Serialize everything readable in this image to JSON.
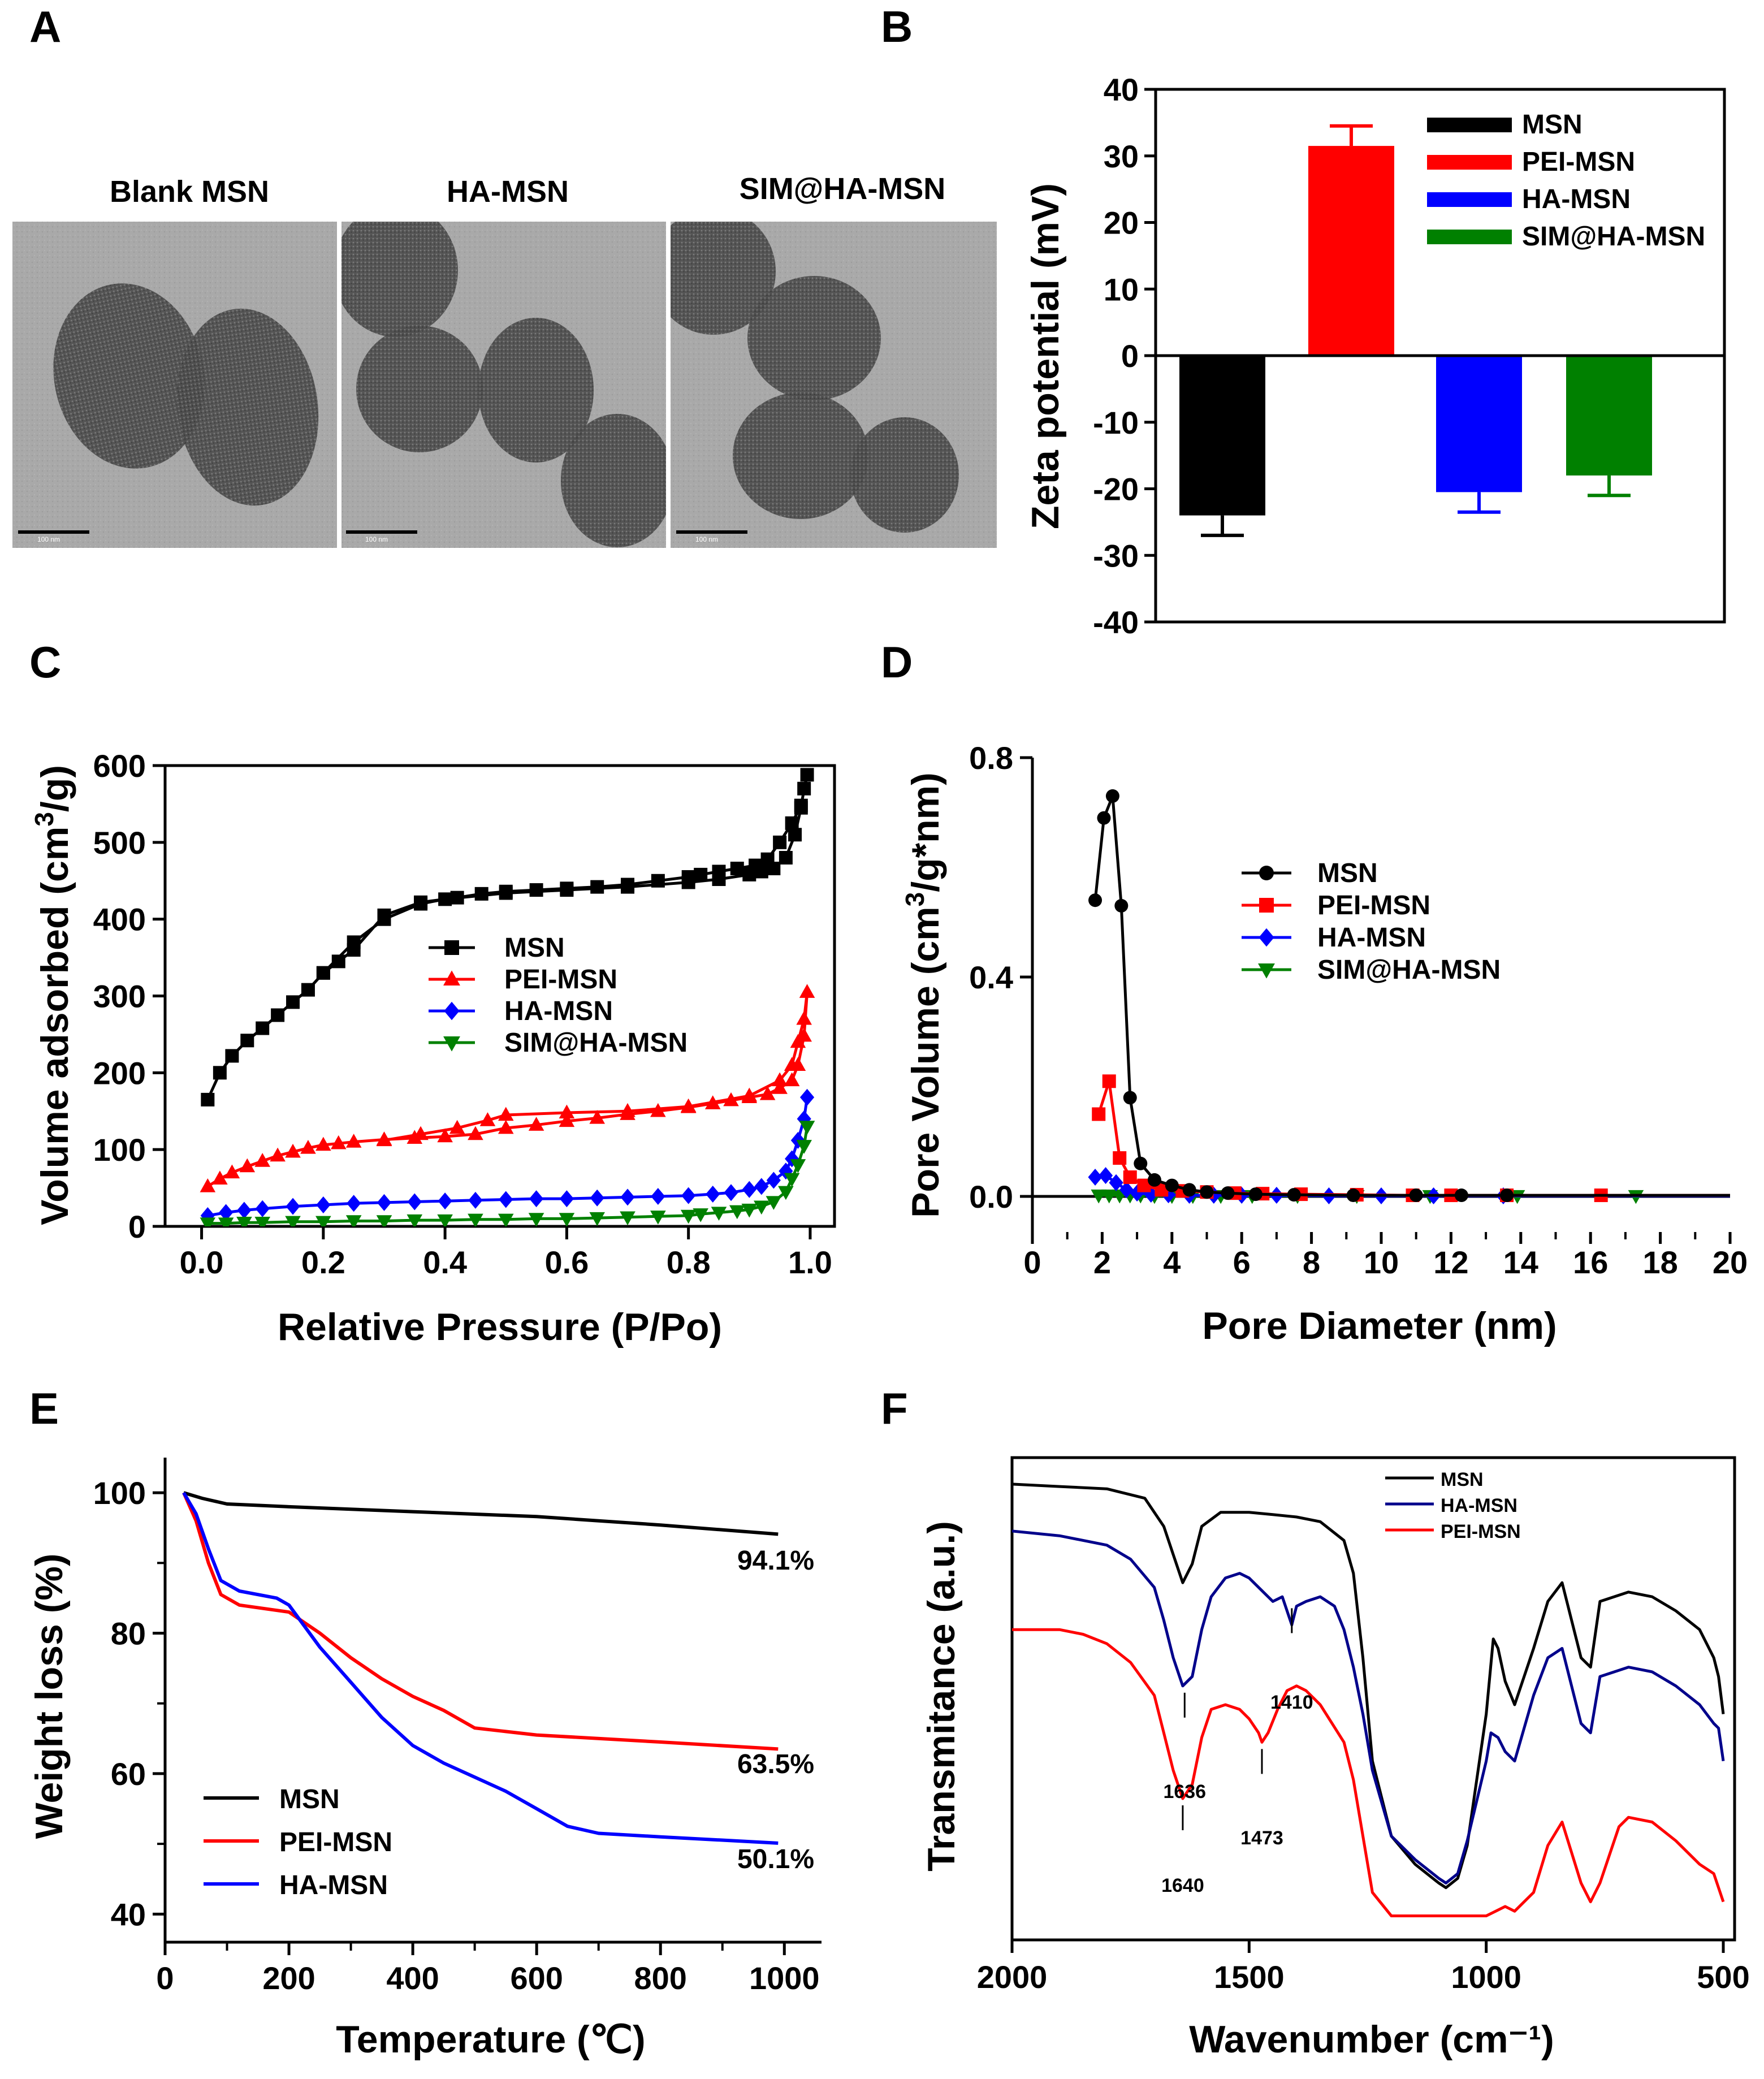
{
  "panels": {
    "A": "A",
    "B": "B",
    "C": "C",
    "D": "D",
    "E": "E",
    "F": "F"
  },
  "colors": {
    "msn": "#000000",
    "pei": "#ff0000",
    "ha": "#0000ff",
    "sim": "#008000",
    "ftir_blue": "#00008b",
    "tga_blue": "#0000ff"
  },
  "tem": {
    "captions": [
      "Blank MSN",
      "HA-MSN",
      "SIM@HA-MSN"
    ],
    "scale_label": "100 nm"
  },
  "chart_data": [
    {
      "id": "B",
      "type": "bar",
      "categories": [
        "MSN",
        "PEI-MSN",
        "HA-MSN",
        "SIM@HA-MSN"
      ],
      "values": [
        -24,
        31.5,
        -20.5,
        -18
      ],
      "errors": [
        3,
        3,
        3,
        3
      ],
      "colors": [
        "#000000",
        "#ff0000",
        "#0000ff",
        "#008000"
      ],
      "ylabel": "Zeta potential (mV)",
      "ylim": [
        -40,
        40
      ],
      "yticks": [
        "40",
        "30",
        "20",
        "10",
        "0",
        "-10",
        "-20",
        "-30",
        "-40"
      ],
      "legend": [
        "MSN",
        "PEI-MSN",
        "HA-MSN",
        "SIM@HA-MSN"
      ]
    },
    {
      "id": "C",
      "type": "scatter",
      "xlabel": "Relative Pressure (P/Po)",
      "ylabel": "Volume adsorbed (cm³/g)",
      "ylabel_parts": [
        "Volume adsorbed (cm",
        "3",
        "/g)"
      ],
      "xlim": [
        -0.06,
        1.04
      ],
      "ylim": [
        0,
        600
      ],
      "xticks": [
        "0.0",
        "0.2",
        "0.4",
        "0.6",
        "0.8",
        "1.0"
      ],
      "yticks": [
        "0",
        "100",
        "200",
        "300",
        "400",
        "500",
        "600"
      ],
      "legend": [
        "MSN",
        "PEI-MSN",
        "HA-MSN",
        "SIM@HA-MSN"
      ],
      "series": [
        {
          "name": "MSN",
          "marker": "square",
          "color": "#000000",
          "x": [
            0.01,
            0.03,
            0.05,
            0.075,
            0.1,
            0.125,
            0.15,
            0.175,
            0.2,
            0.225,
            0.25,
            0.3,
            0.36,
            0.42,
            0.46,
            0.5,
            0.55,
            0.6,
            0.65,
            0.7,
            0.75,
            0.8,
            0.82,
            0.85,
            0.88,
            0.91,
            0.93,
            0.95,
            0.97,
            0.985,
            0.995,
            0.99,
            0.985,
            0.975,
            0.96,
            0.94,
            0.92,
            0.9,
            0.85,
            0.8,
            0.7,
            0.6,
            0.5,
            0.4,
            0.36,
            0.3,
            0.25,
            0.2
          ],
          "y": [
            165,
            200,
            222,
            242,
            258,
            275,
            292,
            308,
            330,
            345,
            360,
            405,
            422,
            428,
            433,
            436,
            438,
            440,
            442,
            445,
            450,
            455,
            458,
            462,
            466,
            470,
            478,
            500,
            525,
            548,
            588,
            570,
            545,
            510,
            480,
            466,
            462,
            458,
            452,
            448,
            442,
            438,
            434,
            426,
            420,
            400,
            370,
            330
          ]
        },
        {
          "name": "PEI-MSN",
          "marker": "triangle-up",
          "color": "#ff0000",
          "x": [
            0.01,
            0.03,
            0.05,
            0.075,
            0.1,
            0.125,
            0.15,
            0.175,
            0.2,
            0.225,
            0.25,
            0.3,
            0.35,
            0.4,
            0.45,
            0.5,
            0.55,
            0.6,
            0.65,
            0.7,
            0.75,
            0.8,
            0.84,
            0.87,
            0.9,
            0.93,
            0.95,
            0.97,
            0.98,
            0.99,
            0.995,
            0.99,
            0.98,
            0.97,
            0.95,
            0.9,
            0.8,
            0.7,
            0.6,
            0.5,
            0.47,
            0.42,
            0.36,
            0.3
          ],
          "y": [
            52,
            62,
            70,
            78,
            85,
            92,
            97,
            102,
            106,
            108,
            110,
            113,
            115,
            117,
            120,
            128,
            132,
            137,
            141,
            146,
            150,
            155,
            160,
            164,
            168,
            172,
            180,
            190,
            210,
            248,
            305,
            270,
            240,
            210,
            190,
            170,
            156,
            150,
            148,
            145,
            138,
            128,
            120,
            112
          ]
        },
        {
          "name": "HA-MSN",
          "marker": "diamond",
          "color": "#0000ff",
          "x": [
            0.01,
            0.04,
            0.07,
            0.1,
            0.15,
            0.2,
            0.25,
            0.3,
            0.35,
            0.4,
            0.45,
            0.5,
            0.55,
            0.6,
            0.65,
            0.7,
            0.75,
            0.8,
            0.84,
            0.87,
            0.9,
            0.92,
            0.94,
            0.96,
            0.97,
            0.98,
            0.99,
            0.995
          ],
          "y": [
            14,
            18,
            21,
            23,
            26,
            28,
            30,
            31,
            32,
            33,
            34,
            35,
            36,
            36,
            37,
            38,
            39,
            40,
            42,
            44,
            48,
            52,
            60,
            72,
            88,
            112,
            140,
            168
          ]
        },
        {
          "name": "SIM@HA-MSN",
          "marker": "triangle-down",
          "color": "#008000",
          "x": [
            0.01,
            0.04,
            0.07,
            0.1,
            0.15,
            0.2,
            0.25,
            0.3,
            0.35,
            0.4,
            0.45,
            0.5,
            0.55,
            0.6,
            0.65,
            0.7,
            0.75,
            0.8,
            0.82,
            0.85,
            0.88,
            0.9,
            0.92,
            0.94,
            0.96,
            0.97,
            0.98,
            0.99,
            0.995
          ],
          "y": [
            4,
            4,
            5,
            5,
            6,
            6,
            7,
            7,
            8,
            8,
            9,
            9,
            10,
            10,
            11,
            12,
            13,
            14,
            16,
            18,
            20,
            22,
            26,
            32,
            45,
            62,
            80,
            105,
            130
          ]
        }
      ]
    },
    {
      "id": "D",
      "type": "line",
      "xlabel": "Pore Diameter (nm)",
      "ylabel": "Pore Volume (cm³/g*nm)",
      "ylabel_parts": [
        "Pore Volume (cm",
        "3",
        "/g*nm)"
      ],
      "xlim": [
        0,
        20
      ],
      "ylim": [
        -0.05,
        0.8
      ],
      "xticks": [
        "0",
        "2",
        "4",
        "6",
        "8",
        "10",
        "12",
        "14",
        "16",
        "18",
        "20"
      ],
      "yticks": [
        "0.0",
        "0.4",
        "0.8"
      ],
      "legend": [
        "MSN",
        "PEI-MSN",
        "HA-MSN",
        "SIM@HA-MSN"
      ],
      "series": [
        {
          "name": "MSN",
          "marker": "circle",
          "color": "#000000",
          "x": [
            1.8,
            2.05,
            2.3,
            2.55,
            2.8,
            3.1,
            3.5,
            4.0,
            4.5,
            5.0,
            5.6,
            6.4,
            7.5,
            9.2,
            11.0,
            12.3,
            13.6
          ],
          "y": [
            0.54,
            0.69,
            0.73,
            0.53,
            0.18,
            0.06,
            0.03,
            0.02,
            0.012,
            0.008,
            0.006,
            0.004,
            0.003,
            0.002,
            0.002,
            0.002,
            0.002
          ]
        },
        {
          "name": "PEI-MSN",
          "marker": "square",
          "color": "#ff0000",
          "x": [
            1.9,
            2.2,
            2.5,
            2.8,
            3.2,
            3.7,
            4.3,
            5.0,
            5.8,
            6.6,
            7.7,
            9.3,
            10.9,
            12.0,
            13.6,
            16.3
          ],
          "y": [
            0.15,
            0.21,
            0.07,
            0.035,
            0.02,
            0.012,
            0.01,
            0.008,
            0.006,
            0.005,
            0.004,
            0.003,
            0.002,
            0.002,
            0.002,
            0.002
          ]
        },
        {
          "name": "HA-MSN",
          "marker": "diamond",
          "color": "#0000ff",
          "x": [
            1.8,
            2.1,
            2.4,
            2.7,
            3.0,
            3.4,
            3.9,
            4.5,
            5.2,
            6.0,
            7.0,
            8.5,
            10.0,
            11.5,
            13.5
          ],
          "y": [
            0.035,
            0.038,
            0.025,
            0.012,
            0.006,
            0.004,
            0.003,
            0.002,
            0.002,
            0.002,
            0.002,
            0.001,
            0.001,
            0.001,
            0.001
          ]
        },
        {
          "name": "SIM@HA-MSN",
          "marker": "triangle-down",
          "color": "#008000",
          "x": [
            1.9,
            2.2,
            2.5,
            2.8,
            3.1,
            3.5,
            4.0,
            4.6,
            5.4,
            6.3,
            7.6,
            9.3,
            11.4,
            13.9,
            17.3
          ],
          "y": [
            0.002,
            0.002,
            0.002,
            0.002,
            0.002,
            0.001,
            0.001,
            0.001,
            0.001,
            0.001,
            0.001,
            0.001,
            0.001,
            0.001,
            0.001
          ]
        }
      ]
    },
    {
      "id": "E",
      "type": "line",
      "xlabel": "Temperature (℃)",
      "ylabel": "Weight loss (%)",
      "xlim": [
        0,
        1060
      ],
      "ylim": [
        36,
        105
      ],
      "xticks": [
        "0",
        "200",
        "400",
        "600",
        "800",
        "1000"
      ],
      "yticks": [
        "40",
        "60",
        "80",
        "100"
      ],
      "legend": [
        "MSN",
        "PEI-MSN",
        "HA-MSN"
      ],
      "end_labels": [
        "94.1%",
        "63.5%",
        "50.1%"
      ],
      "series": [
        {
          "name": "MSN",
          "color": "#000000",
          "x": [
            30,
            60,
            100,
            200,
            400,
            600,
            800,
            990
          ],
          "y": [
            100,
            99.2,
            98.4,
            98.0,
            97.3,
            96.6,
            95.4,
            94.1
          ]
        },
        {
          "name": "PEI-MSN",
          "color": "#ff0000",
          "x": [
            30,
            50,
            70,
            90,
            120,
            200,
            250,
            300,
            350,
            400,
            450,
            500,
            550,
            600,
            800,
            990
          ],
          "y": [
            100,
            96,
            90,
            85.5,
            84,
            83,
            80,
            76.5,
            73.5,
            71,
            69,
            66.5,
            66,
            65.5,
            64.5,
            63.5
          ]
        },
        {
          "name": "HA-MSN",
          "color": "#0000ff",
          "x": [
            30,
            50,
            70,
            90,
            120,
            180,
            200,
            250,
            300,
            350,
            400,
            450,
            500,
            550,
            600,
            650,
            700,
            800,
            990
          ],
          "y": [
            100,
            97,
            92,
            87.5,
            86,
            85,
            84,
            78,
            73,
            68,
            64,
            61.5,
            59.5,
            57.5,
            55,
            52.5,
            51.5,
            51,
            50.1
          ]
        }
      ]
    },
    {
      "id": "F",
      "type": "line",
      "xlabel": "Wavenumber (cm⁻¹)",
      "ylabel": "Transmitance (a.u.)",
      "xlim": [
        2000,
        500
      ],
      "ylim": [
        0,
        100
      ],
      "xticks": [
        "2000",
        "1500",
        "1000",
        "500"
      ],
      "legend": [
        "MSN",
        "HA-MSN",
        "PEI-MSN"
      ],
      "peak_labels": [
        "1410",
        "1636",
        "1640",
        "1473"
      ],
      "series": [
        {
          "name": "MSN",
          "color": "#000000",
          "x": [
            2000,
            1900,
            1800,
            1720,
            1680,
            1660,
            1640,
            1620,
            1600,
            1560,
            1500,
            1450,
            1400,
            1350,
            1300,
            1280,
            1260,
            1240,
            1200,
            1150,
            1100,
            1085,
            1060,
            1040,
            1000,
            985,
            975,
            960,
            940,
            900,
            870,
            840,
            800,
            780,
            760,
            700,
            650,
            600,
            550,
            520,
            510,
            500
          ],
          "y": [
            97,
            96.5,
            96,
            94,
            88,
            82,
            76,
            80,
            88,
            91,
            91,
            90.5,
            90,
            89,
            85,
            78,
            60,
            38,
            22,
            16,
            12,
            11,
            13,
            20,
            48,
            64,
            62,
            55,
            50,
            62,
            72,
            76,
            60,
            58,
            72,
            74,
            73,
            70,
            66,
            60,
            56,
            48
          ]
        },
        {
          "name": "HA-MSN",
          "color": "#00008b",
          "x": [
            2000,
            1900,
            1800,
            1750,
            1700,
            1680,
            1660,
            1640,
            1620,
            1600,
            1580,
            1550,
            1520,
            1500,
            1470,
            1450,
            1430,
            1410,
            1400,
            1380,
            1350,
            1320,
            1300,
            1280,
            1260,
            1240,
            1200,
            1150,
            1100,
            1085,
            1060,
            1040,
            1000,
            990,
            975,
            960,
            940,
            900,
            870,
            840,
            800,
            780,
            760,
            700,
            650,
            600,
            550,
            520,
            510,
            500
          ],
          "y": [
            87,
            86,
            84,
            81,
            75,
            68,
            60,
            54,
            56,
            66,
            73,
            77,
            78,
            77,
            74,
            72,
            73,
            67,
            71,
            72,
            73,
            71,
            66,
            58,
            48,
            36,
            22,
            17,
            13,
            12,
            14,
            21,
            38,
            44,
            43,
            40,
            38,
            52,
            60,
            62,
            46,
            44,
            56,
            58,
            57,
            54,
            50,
            46,
            45,
            38
          ]
        },
        {
          "name": "PEI-MSN",
          "color": "#ff0000",
          "x": [
            2000,
            1900,
            1850,
            1800,
            1750,
            1700,
            1680,
            1660,
            1640,
            1620,
            1600,
            1580,
            1550,
            1520,
            1500,
            1480,
            1473,
            1460,
            1440,
            1420,
            1400,
            1380,
            1350,
            1300,
            1280,
            1260,
            1240,
            1200,
            1150,
            1100,
            1050,
            1000,
            980,
            960,
            940,
            900,
            870,
            840,
            800,
            780,
            760,
            720,
            700,
            650,
            600,
            550,
            520,
            500
          ],
          "y": [
            66,
            66,
            65,
            63,
            59,
            52,
            44,
            36,
            30,
            33,
            43,
            49,
            50,
            49,
            47,
            44,
            42,
            44,
            49,
            53,
            54,
            53,
            50,
            42,
            34,
            22,
            10,
            5,
            5,
            5,
            5,
            5,
            6,
            7,
            6,
            10,
            20,
            25,
            12,
            8,
            12,
            24,
            26,
            25,
            21,
            16,
            14,
            8
          ]
        }
      ]
    }
  ]
}
